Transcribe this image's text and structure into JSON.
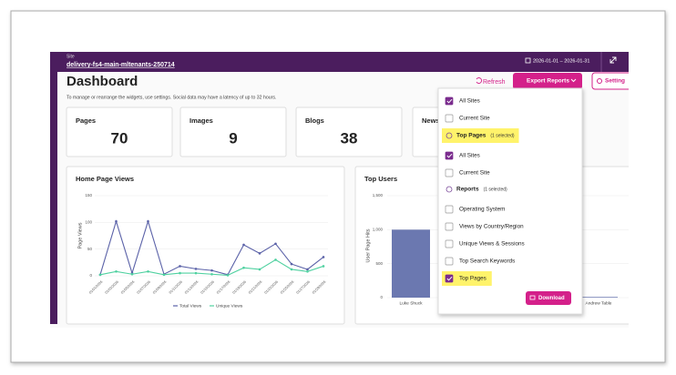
{
  "topbar": {
    "site_label": "Site",
    "site_name": "delivery-fs4-main-mltenants-250714",
    "date_range": "2026-01-01 – 2026-01-31"
  },
  "header": {
    "title": "Dashboard",
    "subtitle": "To manage or rearrange the widgets, use settings. Social data may have a latency of up to 32 hours.",
    "refresh": "Refresh",
    "export": "Export Reports",
    "settings": "Setting"
  },
  "cards": [
    {
      "label": "Pages",
      "value": 70
    },
    {
      "label": "Images",
      "value": 9
    },
    {
      "label": "Blogs",
      "value": 38
    },
    {
      "label": "News"
    }
  ],
  "chart_data": [
    {
      "type": "line",
      "title": "Home Page Views",
      "y_label": "Page Views",
      "categories": [
        "01/01/2026",
        "01/03/2026",
        "01/05/2026",
        "01/07/2026",
        "01/09/2026",
        "01/11/2026",
        "01/13/2026",
        "01/15/2026",
        "01/17/2026",
        "01/19/2026",
        "01/21/2026",
        "01/23/2026",
        "01/25/2026",
        "01/27/2026",
        "01/29/2026"
      ],
      "series": [
        {
          "name": "Total Views",
          "color": "#5b62a8",
          "values": [
            2,
            102,
            5,
            102,
            3,
            18,
            13,
            10,
            2,
            58,
            42,
            60,
            22,
            12,
            35
          ]
        },
        {
          "name": "Unique Views",
          "color": "#4fd1a0",
          "values": [
            2,
            8,
            3,
            8,
            2,
            5,
            5,
            3,
            1,
            15,
            12,
            30,
            12,
            8,
            18
          ]
        }
      ],
      "ylim": [
        0,
        150
      ],
      "yticks": [
        0,
        50,
        100,
        150
      ],
      "grid": true
    },
    {
      "type": "bar",
      "title": "Top Users",
      "y_label": "User Page Hits",
      "categories": [
        "Luke Shuck",
        "Andrew Table"
      ],
      "values": [
        1000,
        10
      ],
      "color": "#6b78b0",
      "ylim": [
        0,
        1500
      ],
      "yticks": [
        0,
        500,
        {
          "value": 1000,
          "label": "1,000"
        },
        {
          "value": 1500,
          "label": "1,500"
        }
      ],
      "grid": true
    }
  ],
  "dropdown": {
    "items": [
      {
        "label": "All Sites",
        "checked": true
      },
      {
        "label": "Current Site",
        "checked": false
      },
      {
        "label": "Top Pages",
        "note": "(1 selected)",
        "highlight": true
      },
      {
        "label": "All Sites",
        "checked": true
      },
      {
        "label": "Current Site",
        "checked": false
      },
      {
        "label": "Reports",
        "note": "(1 selected)"
      },
      {
        "label": "Operating System",
        "checked": false
      },
      {
        "label": "Views by Country/Region",
        "checked": false
      },
      {
        "label": "Unique Views & Sessions",
        "checked": false
      },
      {
        "label": "Top Search Keywords",
        "checked": false
      },
      {
        "label": "Top Pages",
        "checked": true,
        "highlight": true
      }
    ],
    "download": "Download"
  }
}
